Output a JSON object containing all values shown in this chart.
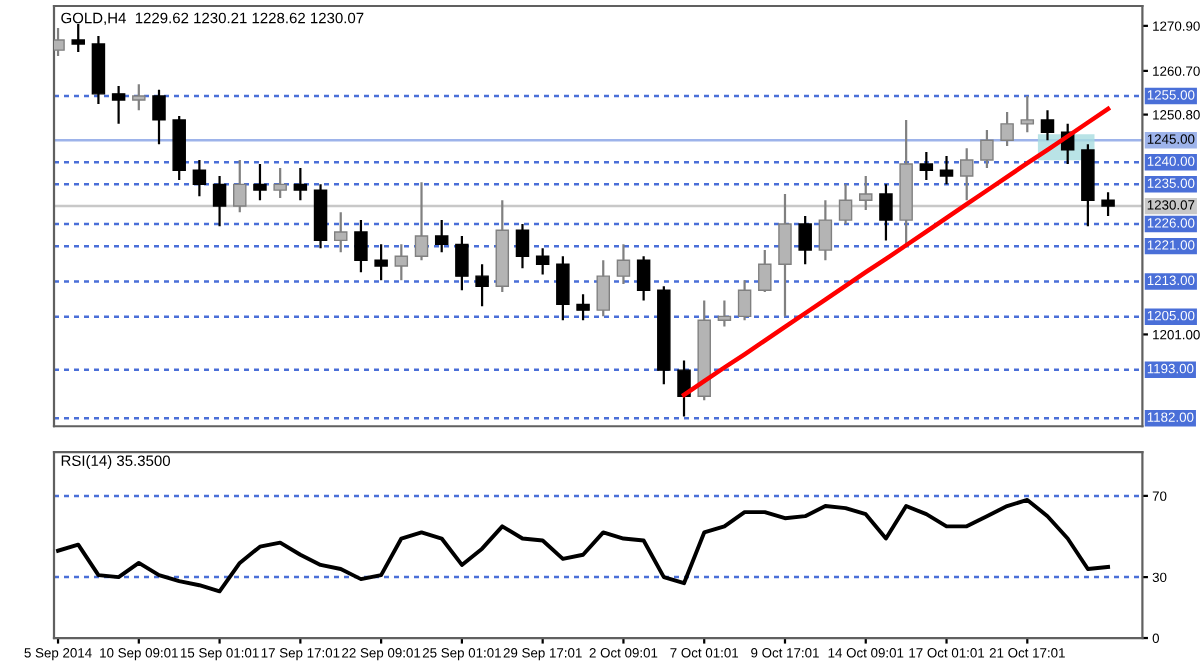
{
  "chart_data": [
    {
      "type": "candlestick",
      "title": "GOLD,H4  1229.62 1230.21 1228.62 1230.07",
      "categories": [
        null,
        null,
        null,
        null,
        null,
        null,
        null,
        null,
        null,
        null,
        null,
        null,
        null,
        null,
        null,
        null,
        null,
        null,
        null,
        null,
        null,
        null,
        null,
        null,
        null,
        null,
        null,
        null,
        null,
        null,
        null,
        null,
        null,
        null,
        null,
        null,
        null,
        null,
        null,
        null,
        null,
        null,
        null,
        null,
        null,
        null,
        null,
        null,
        null,
        null,
        null,
        null,
        null
      ],
      "ohlc": [
        [
          1265.4,
          1270.4,
          1264.1,
          1267.7
        ],
        [
          1267.7,
          1271.3,
          1265.0,
          1266.8
        ],
        [
          1266.8,
          1268.6,
          1253.2,
          1255.5
        ],
        [
          1255.5,
          1257.3,
          1248.7,
          1254.1
        ],
        [
          1254.1,
          1257.7,
          1251.8,
          1255.0
        ],
        [
          1255.0,
          1256.4,
          1244.1,
          1249.6
        ],
        [
          1249.6,
          1250.5,
          1236.0,
          1238.2
        ],
        [
          1238.2,
          1240.5,
          1232.3,
          1235.0
        ],
        [
          1235.0,
          1236.9,
          1225.5,
          1230.1
        ],
        [
          1230.1,
          1240.5,
          1228.7,
          1235.0
        ],
        [
          1235.0,
          1239.6,
          1231.4,
          1233.7
        ],
        [
          1233.7,
          1238.7,
          1231.9,
          1235.0
        ],
        [
          1235.0,
          1238.7,
          1231.4,
          1233.7
        ],
        [
          1233.7,
          1235.0,
          1220.5,
          1222.3
        ],
        [
          1222.3,
          1228.7,
          1219.6,
          1224.2
        ],
        [
          1224.2,
          1226.9,
          1215.1,
          1217.8
        ],
        [
          1217.8,
          1221.4,
          1213.3,
          1216.5
        ],
        [
          1216.5,
          1221.4,
          1213.3,
          1218.7
        ],
        [
          1218.7,
          1235.5,
          1217.8,
          1223.3
        ],
        [
          1223.3,
          1226.9,
          1219.6,
          1221.4
        ],
        [
          1221.4,
          1223.3,
          1211.0,
          1214.2
        ],
        [
          1214.2,
          1216.9,
          1207.4,
          1211.9
        ],
        [
          1211.9,
          1231.4,
          1210.6,
          1224.6
        ],
        [
          1224.6,
          1226.0,
          1216.0,
          1218.7
        ],
        [
          1218.7,
          1220.5,
          1214.6,
          1216.9
        ],
        [
          1216.9,
          1218.7,
          1204.2,
          1207.8
        ],
        [
          1207.8,
          1210.1,
          1204.2,
          1206.5
        ],
        [
          1206.5,
          1217.8,
          1205.1,
          1214.2
        ],
        [
          1214.2,
          1221.4,
          1212.4,
          1217.8
        ],
        [
          1217.8,
          1218.7,
          1208.7,
          1211.0
        ],
        [
          1211.0,
          1211.9,
          1189.7,
          1192.9
        ],
        [
          1192.9,
          1195.1,
          1182.4,
          1187.0
        ],
        [
          1187.0,
          1208.7,
          1186.1,
          1204.2
        ],
        [
          1204.2,
          1208.7,
          1202.8,
          1205.1
        ],
        [
          1205.1,
          1213.3,
          1204.2,
          1211.0
        ],
        [
          1211.0,
          1220.1,
          1210.6,
          1216.9
        ],
        [
          1216.9,
          1232.8,
          1205.1,
          1226.0
        ],
        [
          1226.0,
          1227.8,
          1216.9,
          1220.1
        ],
        [
          1220.1,
          1231.4,
          1217.8,
          1226.9
        ],
        [
          1226.9,
          1235.0,
          1226.0,
          1231.4
        ],
        [
          1231.4,
          1236.9,
          1229.2,
          1232.8
        ],
        [
          1232.8,
          1235.0,
          1222.3,
          1226.9
        ],
        [
          1226.9,
          1249.6,
          1221.4,
          1239.6
        ],
        [
          1239.6,
          1242.3,
          1236.0,
          1238.2
        ],
        [
          1238.2,
          1241.4,
          1235.0,
          1236.9
        ],
        [
          1236.9,
          1243.2,
          1231.4,
          1240.5
        ],
        [
          1240.5,
          1247.3,
          1238.7,
          1245.0
        ],
        [
          1245.0,
          1251.4,
          1243.7,
          1248.7
        ],
        [
          1248.7,
          1255.0,
          1246.8,
          1249.6
        ],
        [
          1249.6,
          1251.8,
          1245.0,
          1246.8
        ],
        [
          1246.8,
          1248.7,
          1239.6,
          1242.8
        ],
        [
          1242.8,
          1244.1,
          1225.5,
          1231.4
        ],
        [
          1231.4,
          1233.2,
          1227.8,
          1230.07
        ]
      ],
      "series": [
        {
          "type": "line",
          "color": "#ff0000",
          "values": [
            null,
            null,
            null,
            null,
            null,
            null,
            null,
            null,
            null,
            null,
            null,
            null,
            null,
            null,
            null,
            null,
            null,
            null,
            null,
            null,
            null,
            null,
            null,
            null,
            null,
            null,
            null,
            null,
            null,
            null,
            null,
            1187.3,
            1190.4,
            1193.5,
            1196.5,
            1199.6,
            1202.7,
            1205.8,
            1208.9,
            1212.0,
            1215.1,
            1218.1,
            1221.2,
            1224.3,
            1227.4,
            1230.5,
            1233.6,
            1236.7,
            1239.8,
            1242.8,
            1245.9,
            1249.0,
            1252.1
          ]
        }
      ],
      "ylim": [
        1180.2,
        1275.4
      ],
      "yticks": [
        {
          "value": 1270.9,
          "label": "1270.90"
        },
        {
          "value": 1260.7,
          "label": "1260.70"
        },
        {
          "value": 1250.8,
          "label": "1250.80"
        },
        {
          "value": 1201.0,
          "label": "1201.00"
        }
      ],
      "ref_lines": [
        {
          "axis": "y",
          "value": 1255.0,
          "label": "1255.00",
          "color": "#4a6fd8",
          "line_style": "dashed"
        },
        {
          "axis": "y",
          "value": 1245.0,
          "label": "1245.00",
          "color": "#9db3ea",
          "line_style": "solid"
        },
        {
          "axis": "y",
          "value": 1240.0,
          "label": "1240.00",
          "color": "#4a6fd8",
          "line_style": "dashed"
        },
        {
          "axis": "y",
          "value": 1235.0,
          "label": "1235.00",
          "color": "#4a6fd8",
          "line_style": "dashed"
        },
        {
          "axis": "y",
          "value": 1230.07,
          "label": "1230.07",
          "color": "#c8c8c8",
          "line_style": "solid"
        },
        {
          "axis": "y",
          "value": 1226.0,
          "label": "1226.00",
          "color": "#4a6fd8",
          "line_style": "dashed"
        },
        {
          "axis": "y",
          "value": 1221.0,
          "label": "1221.00",
          "color": "#4a6fd8",
          "line_style": "dashed"
        },
        {
          "axis": "y",
          "value": 1213.0,
          "label": "1213.00",
          "color": "#4a6fd8",
          "line_style": "dashed"
        },
        {
          "axis": "y",
          "value": 1205.0,
          "label": "1205.00",
          "color": "#4a6fd8",
          "line_style": "dashed"
        },
        {
          "axis": "y",
          "value": 1193.0,
          "label": "1193.00",
          "color": "#4a6fd8",
          "line_style": "dashed"
        },
        {
          "axis": "y",
          "value": 1182.0,
          "label": "1182.00",
          "color": "#4a6fd8",
          "line_style": "dashed"
        }
      ],
      "tick_labels": "y"
    },
    {
      "type": "line",
      "title": "RSI(14) 35.3500",
      "color": "#000000",
      "categories": [
        "5 Sep 2014",
        null,
        null,
        null,
        "10 Sep 09:01",
        null,
        null,
        null,
        "15 Sep 01:01",
        null,
        null,
        null,
        "17 Sep 17:01",
        null,
        null,
        null,
        "22 Sep 09:01",
        null,
        null,
        null,
        "25 Sep 01:01",
        null,
        null,
        null,
        "29 Sep 17:01",
        null,
        null,
        null,
        "2 Oct 09:01",
        null,
        null,
        null,
        "7 Oct 01:01",
        null,
        null,
        null,
        "9 Oct 17:01",
        null,
        null,
        null,
        "14 Oct 09:01",
        null,
        null,
        null,
        "17 Oct 01:01",
        null,
        null,
        null,
        "21 Oct 17:01",
        null,
        null,
        null,
        null
      ],
      "values": [
        43,
        46,
        31,
        30,
        37,
        31,
        28,
        26,
        23,
        37,
        45,
        47,
        41,
        36,
        34,
        29,
        31,
        49,
        52,
        49,
        36,
        44,
        55,
        49,
        48,
        39,
        41,
        52,
        49,
        48,
        30,
        27,
        52,
        55,
        62,
        62,
        59,
        60,
        65,
        64,
        61,
        49,
        65,
        61,
        55,
        55,
        60,
        65,
        68,
        60,
        49,
        34,
        35
      ],
      "ylim": [
        0,
        91.5
      ],
      "yticks": [
        0,
        30,
        70
      ],
      "ref_lines": [
        {
          "axis": "y",
          "value": 70,
          "color": "#4a6fd8",
          "line_style": "dashed"
        },
        {
          "axis": "y",
          "value": 30,
          "color": "#4a6fd8",
          "line_style": "dashed"
        }
      ]
    }
  ]
}
